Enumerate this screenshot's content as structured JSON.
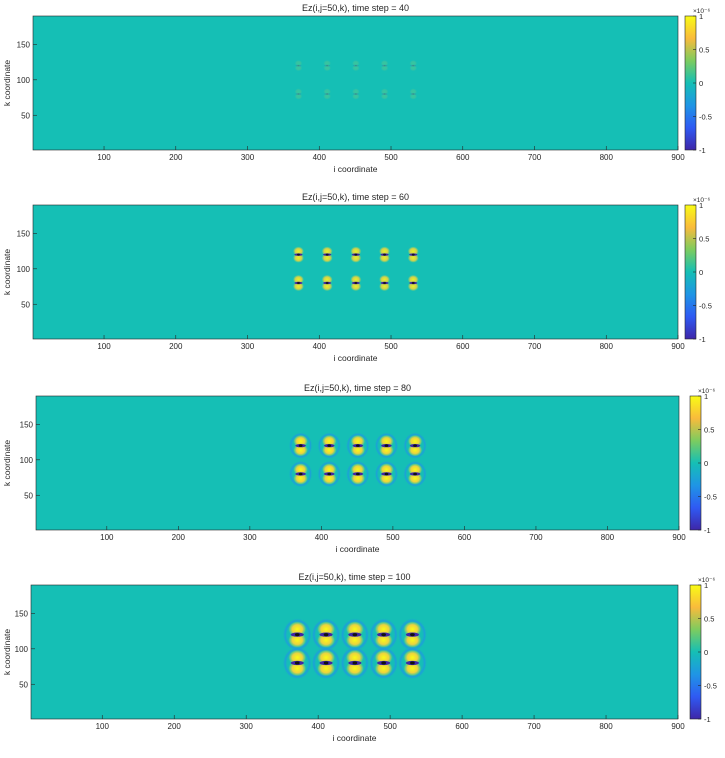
{
  "chart_data": [
    {
      "type": "heatmap",
      "title": "Ez(i,j=50,k), time step = 40",
      "xlabel": "i coordinate",
      "ylabel": "k coordinate",
      "xlim": [
        1,
        900
      ],
      "ylim": [
        1,
        190
      ],
      "x_ticks": [
        "100",
        "200",
        "300",
        "400",
        "500",
        "600",
        "700",
        "800",
        "900"
      ],
      "y_ticks": [
        "50",
        "100",
        "150"
      ],
      "colorbar": {
        "min": -1,
        "max": 1,
        "exponent": "×10⁻⁶",
        "ticks": [
          "1",
          "0.5",
          "0",
          "-0.5",
          "-1"
        ]
      },
      "background_value": 0,
      "sources": {
        "i": [
          371,
          411,
          451,
          491,
          531
        ],
        "k": [
          120,
          80
        ]
      },
      "relative_amplitude": 0.15,
      "relative_radius": 0.25
    },
    {
      "type": "heatmap",
      "title": "Ez(i,j=50,k), time step = 60",
      "xlabel": "i coordinate",
      "ylabel": "k coordinate",
      "xlim": [
        1,
        900
      ],
      "ylim": [
        1,
        190
      ],
      "x_ticks": [
        "100",
        "200",
        "300",
        "400",
        "500",
        "600",
        "700",
        "800",
        "900"
      ],
      "y_ticks": [
        "50",
        "100",
        "150"
      ],
      "colorbar": {
        "min": -1,
        "max": 1,
        "exponent": "×10⁻⁶",
        "ticks": [
          "1",
          "0.5",
          "0",
          "-0.5",
          "-1"
        ]
      },
      "background_value": 0,
      "sources": {
        "i": [
          371,
          411,
          451,
          491,
          531
        ],
        "k": [
          120,
          80
        ]
      },
      "relative_amplitude": 0.9,
      "relative_radius": 0.5
    },
    {
      "type": "heatmap",
      "title": "Ez(i,j=50,k), time step = 80",
      "xlabel": "i coordinate",
      "ylabel": "k coordinate",
      "xlim": [
        1,
        900
      ],
      "ylim": [
        1,
        190
      ],
      "x_ticks": [
        "100",
        "200",
        "300",
        "400",
        "500",
        "600",
        "700",
        "800",
        "900"
      ],
      "y_ticks": [
        "50",
        "100",
        "150"
      ],
      "colorbar": {
        "min": -1,
        "max": 1,
        "exponent": "×10⁻⁶",
        "ticks": [
          "1",
          "0.5",
          "0",
          "-0.5",
          "-1"
        ]
      },
      "background_value": 0,
      "sources": {
        "i": [
          371,
          411,
          451,
          491,
          531
        ],
        "k": [
          120,
          80
        ]
      },
      "relative_amplitude": 1,
      "relative_radius": 0.75
    },
    {
      "type": "heatmap",
      "title": "Ez(i,j=50,k), time step = 100",
      "xlabel": "i coordinate",
      "ylabel": "k coordinate",
      "xlim": [
        1,
        900
      ],
      "ylim": [
        1,
        190
      ],
      "x_ticks": [
        "100",
        "200",
        "300",
        "400",
        "500",
        "600",
        "700",
        "800",
        "900"
      ],
      "y_ticks": [
        "50",
        "100",
        "150"
      ],
      "colorbar": {
        "min": -1,
        "max": 1,
        "exponent": "×10⁻⁶",
        "ticks": [
          "1",
          "0.5",
          "0",
          "-0.5",
          "-1"
        ]
      },
      "background_value": 0,
      "sources": {
        "i": [
          371,
          411,
          451,
          491,
          531
        ],
        "k": [
          120,
          80
        ]
      },
      "relative_amplitude": 1,
      "relative_radius": 1
    }
  ],
  "colors": {
    "background": "#15bfb5",
    "colormap": [
      "#3e26a8",
      "#2f5af3",
      "#1f95e5",
      "#15bfb5",
      "#7dcc5f",
      "#f9bb3c",
      "#f9fb15"
    ]
  }
}
